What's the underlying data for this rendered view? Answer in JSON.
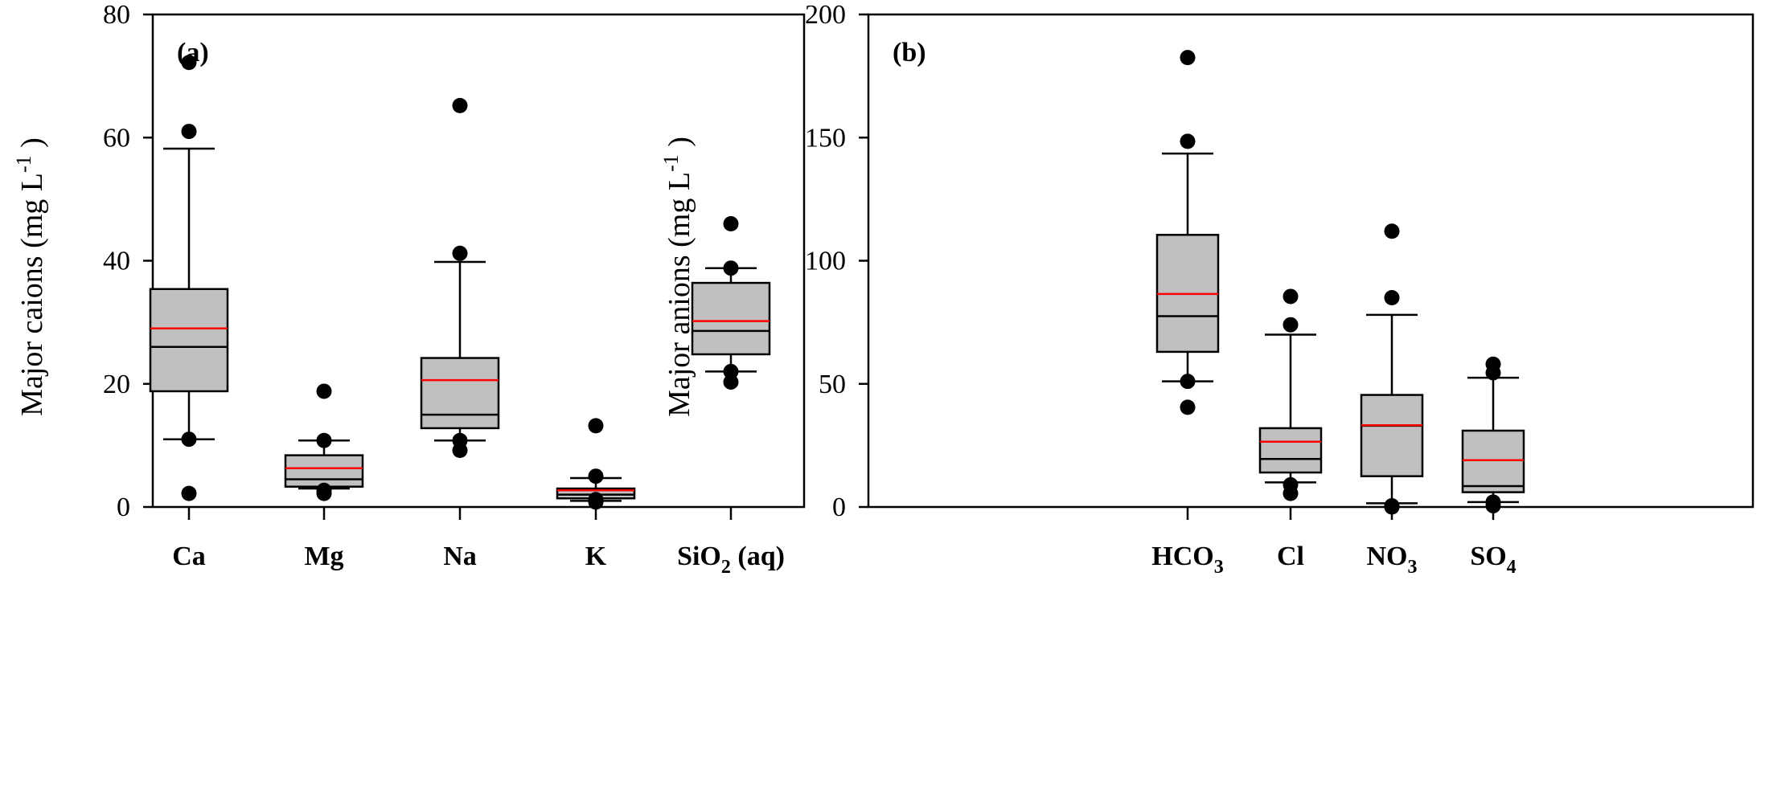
{
  "chart_data": [
    {
      "type": "box",
      "panel_label": "(a)",
      "title": "",
      "xlabel": "",
      "ylabel": "Major caions (mg L-1)",
      "ylabel_parts": {
        "main": "Major caions (mg L",
        "sup": "-1",
        "close": ")"
      },
      "ylim": [
        0,
        80
      ],
      "yticks": [
        0,
        20,
        40,
        60,
        80
      ],
      "grid": false,
      "categories": [
        {
          "label": "Ca",
          "sub": ""
        },
        {
          "label": "Mg",
          "sub": ""
        },
        {
          "label": "Na",
          "sub": ""
        },
        {
          "label": "K",
          "sub": ""
        },
        {
          "label": "SiO",
          "sub": "2",
          "suffix": " (aq)"
        }
      ],
      "boxes": [
        {
          "name": "Ca",
          "whisker_low": 11,
          "q1": 18.8,
          "median": 26,
          "mean": 29,
          "q3": 35.4,
          "whisker_high": 58.2,
          "outliers": [
            2.2,
            11,
            61,
            72.2
          ]
        },
        {
          "name": "Mg",
          "whisker_low": 3,
          "q1": 3.3,
          "median": 4.5,
          "mean": 6.3,
          "q3": 8.4,
          "whisker_high": 10.8,
          "outliers": [
            2.2,
            2.7,
            10.8,
            18.8
          ]
        },
        {
          "name": "Na",
          "whisker_low": 10.8,
          "q1": 12.8,
          "median": 15,
          "mean": 20.6,
          "q3": 24.2,
          "whisker_high": 39.8,
          "outliers": [
            9.2,
            10.8,
            41.2,
            65.2
          ]
        },
        {
          "name": "K",
          "whisker_low": 1,
          "q1": 1.4,
          "median": 2,
          "mean": 2.7,
          "q3": 3,
          "whisker_high": 4.7,
          "outliers": [
            0.8,
            1.2,
            5,
            13.2
          ]
        },
        {
          "name": "SiO2 (aq)",
          "whisker_low": 22,
          "q1": 24.8,
          "median": 28.6,
          "mean": 30.2,
          "q3": 36.4,
          "whisker_high": 38.8,
          "outliers": [
            20.3,
            22,
            38.8,
            46
          ]
        }
      ],
      "colors": {
        "box_fill": "#c0c0c0",
        "median": "#000000",
        "mean": "#ff0000",
        "outlier": "#000000"
      }
    },
    {
      "type": "box",
      "panel_label": "(b)",
      "title": "",
      "xlabel": "",
      "ylabel": "Major anions (mg L-1)",
      "ylabel_parts": {
        "main": "Major anions (mg L",
        "sup": "-1",
        "close": ")"
      },
      "ylim": [
        0,
        200
      ],
      "yticks": [
        0,
        50,
        100,
        150,
        200
      ],
      "grid": false,
      "categories": [
        {
          "label": "HCO",
          "sub": "3"
        },
        {
          "label": "Cl",
          "sub": ""
        },
        {
          "label": "NO",
          "sub": "3"
        },
        {
          "label": "SO",
          "sub": "4"
        }
      ],
      "boxes": [
        {
          "name": "HCO3",
          "whisker_low": 51,
          "q1": 63,
          "median": 77.5,
          "mean": 86.5,
          "q3": 110.5,
          "whisker_high": 143.5,
          "outliers": [
            40.5,
            51,
            148.5,
            182.5
          ]
        },
        {
          "name": "Cl",
          "whisker_low": 10,
          "q1": 14,
          "median": 19.5,
          "mean": 26.5,
          "q3": 32,
          "whisker_high": 70,
          "outliers": [
            5.5,
            9,
            74,
            85.5
          ]
        },
        {
          "name": "NO3",
          "whisker_low": 1.5,
          "q1": 12.5,
          "median": 33,
          "mean": 33.2,
          "q3": 45.5,
          "whisker_high": 78,
          "outliers": [
            0,
            0.5,
            85,
            112
          ]
        },
        {
          "name": "SO4",
          "whisker_low": 2,
          "q1": 6,
          "median": 8.5,
          "mean": 19,
          "q3": 31,
          "whisker_high": 52.5,
          "outliers": [
            0.5,
            2,
            54.5,
            58
          ]
        }
      ],
      "colors": {
        "box_fill": "#c0c0c0",
        "median": "#000000",
        "mean": "#ff0000",
        "outlier": "#000000"
      }
    }
  ]
}
